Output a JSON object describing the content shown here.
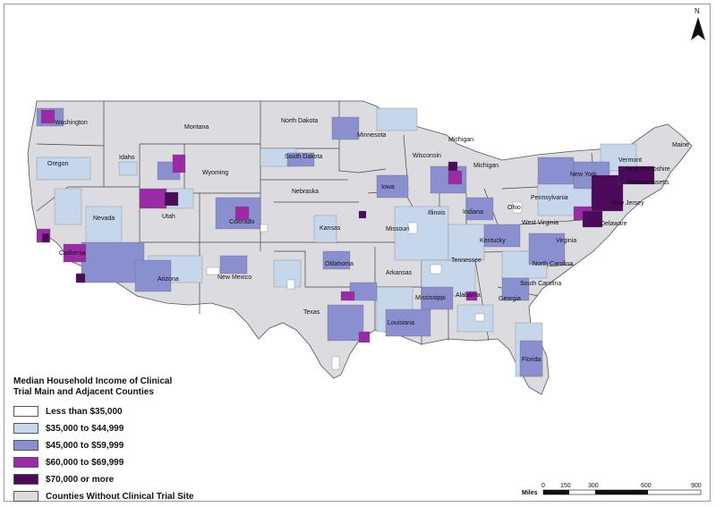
{
  "legend": {
    "title_line1": "Median Household Income of Clinical",
    "title_line2": "Trial Main and Adjacent Counties",
    "items": [
      {
        "label": "Less than $35,000",
        "color": "#ffffff"
      },
      {
        "label": "$35,000 to $44,999",
        "color": "#c6d7ec"
      },
      {
        "label": "$45,000 to $59,999",
        "color": "#8a8fcf"
      },
      {
        "label": "$60,000 to $69,999",
        "color": "#9a2aa6"
      },
      {
        "label": "$70,000 or more",
        "color": "#4b0a5a"
      },
      {
        "label": "Counties Without Clinical Trial Site",
        "color": "#dcdbe0"
      }
    ]
  },
  "scale": {
    "unit": "Miles",
    "ticks": [
      "0",
      "150",
      "300",
      "600",
      "900"
    ]
  },
  "north_label": "N",
  "states": {
    "washington": "Washington",
    "oregon": "Oregon",
    "idaho": "Idaho",
    "montana": "Montana",
    "wyoming": "Wyoming",
    "nevada": "Nevada",
    "utah": "Utah",
    "colorado": "Colorado",
    "california": "California",
    "arizona": "Arizona",
    "new_mexico": "New Mexico",
    "north_dakota": "North Dakota",
    "south_dakota": "South Dakota",
    "nebraska": "Nebraska",
    "kansas": "Kansas",
    "oklahoma": "Oklahoma",
    "texas": "Texas",
    "minnesota": "Minnesota",
    "iowa": "Iowa",
    "missouri": "Missouri",
    "arkansas": "Arkansas",
    "louisiana": "Louisiana",
    "wisconsin": "Wisconsin",
    "illinois": "Illinois",
    "michigan_upper": "Michigan",
    "michigan_lower": "Michigan",
    "indiana": "Indiana",
    "ohio": "Ohio",
    "kentucky": "Kentucky",
    "tennessee": "Tennessee",
    "mississippi": "Mississippi",
    "alabama": "Alabama",
    "georgia": "Georgia",
    "florida": "Florida",
    "south_carolina": "South Carolina",
    "north_carolina": "North Carolina",
    "virginia": "Virginia",
    "west_virginia": "West Virginia",
    "pennsylvania": "Pennsylvania",
    "new_york": "New York",
    "new_jersey": "New Jersey",
    "delaware": "Delaware",
    "maine": "Maine",
    "vermont": "Vermont",
    "new_hampshire": "New Hampshire",
    "massachusetts": "Massachusetts"
  }
}
